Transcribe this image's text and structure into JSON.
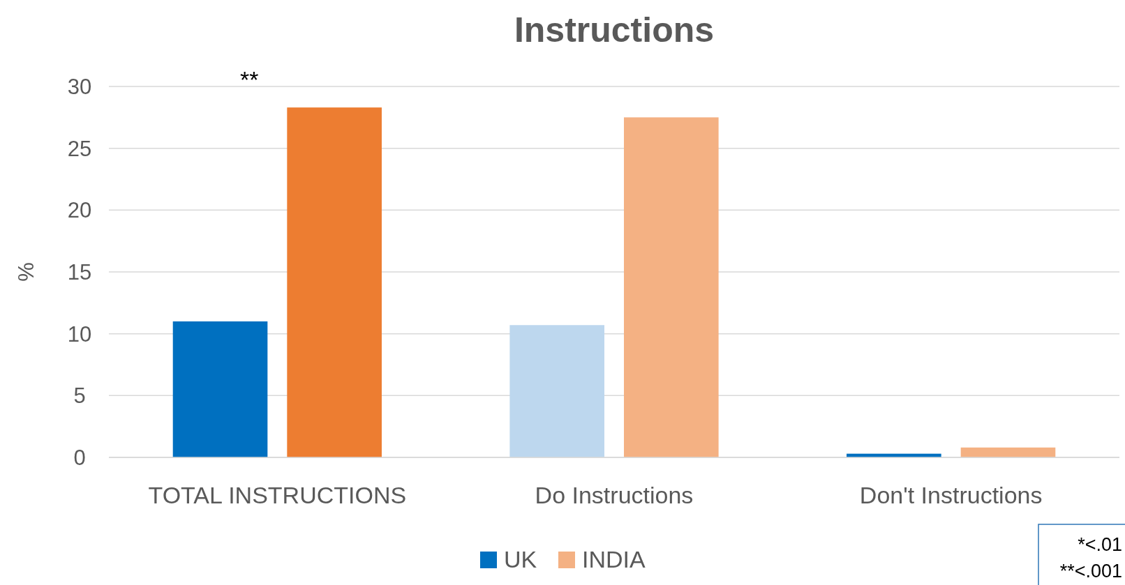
{
  "chart_data": {
    "type": "bar",
    "title": "Instructions",
    "ylabel": "%",
    "categories": [
      "TOTAL INSTRUCTIONS",
      "Do Instructions",
      "Don't Instructions"
    ],
    "series": [
      {
        "name": "UK",
        "color": "#0070c0",
        "colors": [
          "#0070c0",
          "#bdd7ee",
          "#0070c0"
        ],
        "values": [
          11.0,
          10.7,
          0.3
        ]
      },
      {
        "name": "INDIA",
        "color": "#f4b183",
        "colors": [
          "#ed7d31",
          "#f4b183",
          "#f4b183"
        ],
        "values": [
          28.3,
          27.5,
          0.8
        ]
      }
    ],
    "ylim": [
      0,
      30
    ],
    "yticks": [
      0,
      5,
      10,
      15,
      20,
      25,
      30
    ],
    "grid": "y",
    "legend": "bottom",
    "annotations": [
      "**",
      "*<.01",
      "**<.001"
    ]
  }
}
